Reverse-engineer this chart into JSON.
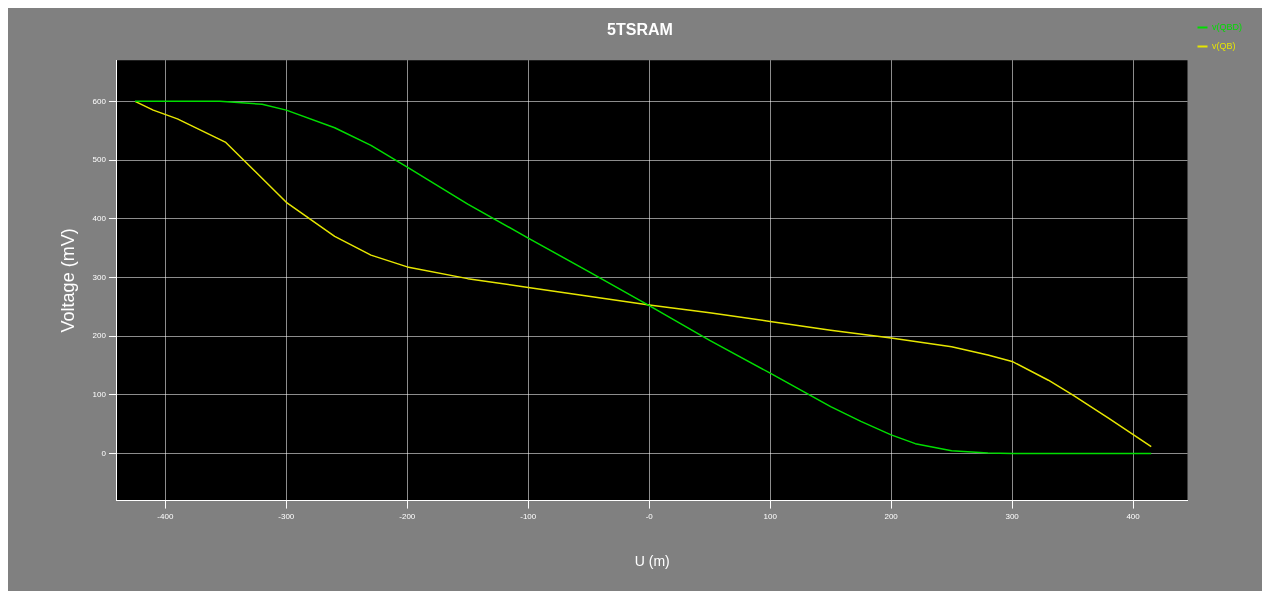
{
  "chart_data": {
    "type": "line",
    "title": "5TSRAM",
    "xlabel": "U (m)",
    "ylabel": "Voltage (mV)",
    "xlim": [
      -440,
      445
    ],
    "ylim": [
      -80,
      670
    ],
    "xticks": [
      -400,
      -300,
      -200,
      -100,
      {
        "value": 0,
        "label": "-0"
      },
      100,
      200,
      300,
      400
    ],
    "yticks": [
      0,
      100,
      200,
      300,
      400,
      500,
      600
    ],
    "grid": true,
    "legend": "top right",
    "marker": "none",
    "line_style": "solid",
    "series": [
      {
        "name": "v(QBD)",
        "color": "#00dd00",
        "x": [
          -425,
          -355,
          -320,
          -300,
          -260,
          -230,
          -200,
          -150,
          -100,
          -50,
          0,
          50,
          100,
          150,
          175,
          200,
          220,
          250,
          280,
          300,
          415
        ],
        "values": [
          600,
          600,
          595,
          585,
          555,
          525,
          488,
          425,
          367,
          310,
          252,
          193,
          137,
          80,
          55,
          32,
          17,
          5,
          1,
          0,
          0
        ]
      },
      {
        "name": "v(QB)",
        "color": "#e6e600",
        "x": [
          -425,
          -410,
          -390,
          -350,
          -300,
          -260,
          -230,
          -200,
          -150,
          -100,
          -50,
          0,
          50,
          100,
          150,
          200,
          250,
          280,
          300,
          330,
          350,
          380,
          415
        ],
        "values": [
          600,
          585,
          570,
          530,
          428,
          370,
          338,
          318,
          298,
          283,
          268,
          253,
          240,
          225,
          210,
          197,
          182,
          168,
          157,
          125,
          100,
          60,
          12
        ]
      }
    ]
  }
}
